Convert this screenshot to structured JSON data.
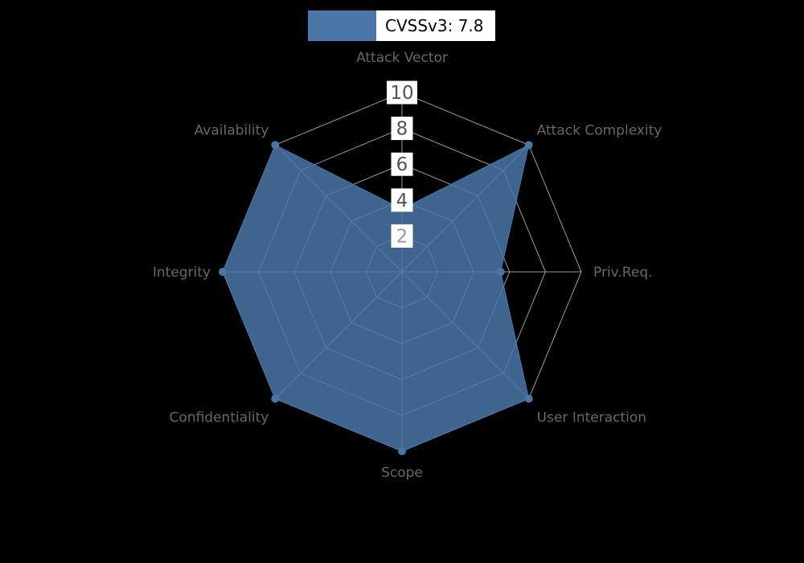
{
  "chart_data": {
    "type": "radar",
    "title": "",
    "legend": {
      "label": "CVSSv3: 7.8",
      "color": "#4a77a8",
      "position": "top"
    },
    "categories": [
      "Attack Vector",
      "Attack Complexity",
      "Priv.Req.",
      "User Interaction",
      "Scope",
      "Confidentiality",
      "Integrity",
      "Availability"
    ],
    "series": [
      {
        "name": "CVSSv3: 7.8",
        "values": [
          3.5,
          10,
          5.5,
          10,
          10,
          10,
          10,
          10
        ],
        "fill": "#4a77a8",
        "fill_opacity": 0.85
      }
    ],
    "radial_ticks": [
      10,
      8,
      6,
      4,
      2
    ],
    "range": [
      0,
      10
    ],
    "grid": "spider-web",
    "grid_color": "#999999",
    "axis_label_color": "#666666",
    "tick_label_color": "#545454",
    "tick_label_color_inner": "#999999",
    "background": "#000000",
    "legend_position": "top"
  }
}
